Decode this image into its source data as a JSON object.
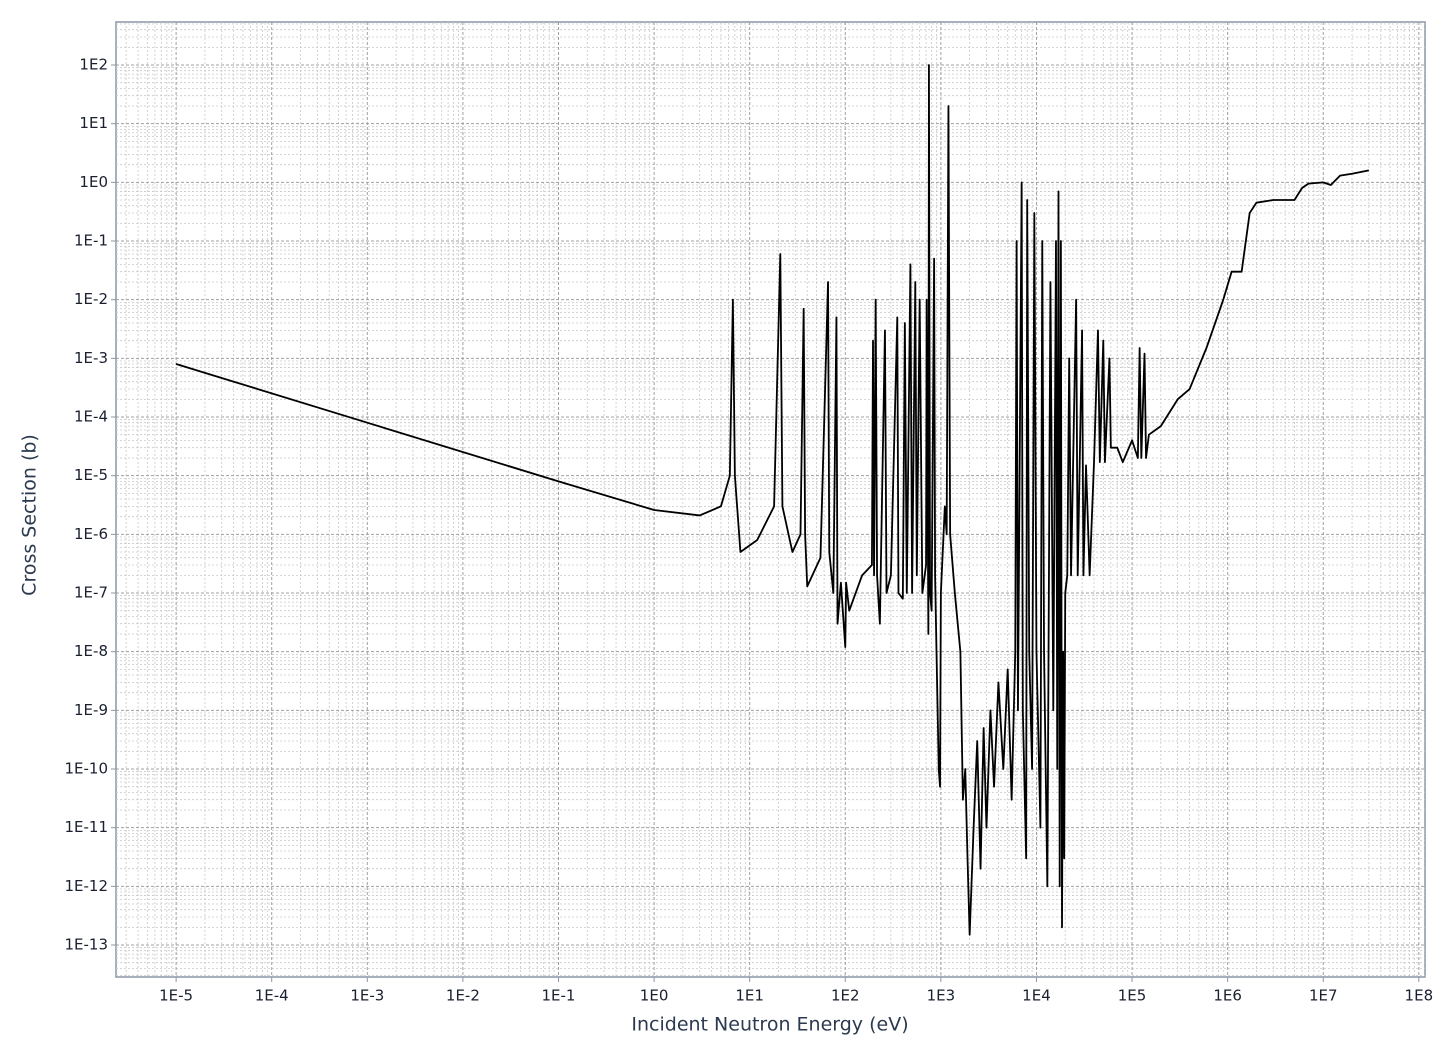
{
  "chart_data": {
    "type": "line",
    "x_label": "Incident Neutron Energy (eV)",
    "y_label": "Cross Section (b)",
    "x_log": true,
    "y_log": true,
    "grid": true,
    "xlim": [
      2.35e-06,
      116000000.0
    ],
    "ylim": [
      2.85e-14,
      541
    ],
    "xticks": [
      {
        "value": 1e-05,
        "label": "1E-5"
      },
      {
        "value": 0.0001,
        "label": "1E-4"
      },
      {
        "value": 0.001,
        "label": "1E-3"
      },
      {
        "value": 0.01,
        "label": "1E-2"
      },
      {
        "value": 0.1,
        "label": "1E-1"
      },
      {
        "value": 1,
        "label": "1E0"
      },
      {
        "value": 10,
        "label": "1E1"
      },
      {
        "value": 100,
        "label": "1E2"
      },
      {
        "value": 1000,
        "label": "1E3"
      },
      {
        "value": 10000,
        "label": "1E4"
      },
      {
        "value": 100000,
        "label": "1E5"
      },
      {
        "value": 1000000,
        "label": "1E6"
      },
      {
        "value": 10000000,
        "label": "1E7"
      },
      {
        "value": 100000000,
        "label": "1E8"
      }
    ],
    "yticks": [
      {
        "value": 1e-13,
        "label": "1E-13"
      },
      {
        "value": 1e-12,
        "label": "1E-12"
      },
      {
        "value": 1e-11,
        "label": "1E-11"
      },
      {
        "value": 1e-10,
        "label": "1E-10"
      },
      {
        "value": 1e-09,
        "label": "1E-9"
      },
      {
        "value": 1e-08,
        "label": "1E-8"
      },
      {
        "value": 1e-07,
        "label": "1E-7"
      },
      {
        "value": 1e-06,
        "label": "1E-6"
      },
      {
        "value": 1e-05,
        "label": "1E-5"
      },
      {
        "value": 0.0001,
        "label": "1E-4"
      },
      {
        "value": 0.001,
        "label": "1E-3"
      },
      {
        "value": 0.01,
        "label": "1E-2"
      },
      {
        "value": 0.1,
        "label": "1E-1"
      },
      {
        "value": 1,
        "label": "1E0"
      },
      {
        "value": 10,
        "label": "1E1"
      },
      {
        "value": 100,
        "label": "1E2"
      }
    ],
    "x": [
      1e-05,
      0.001,
      0.1,
      1,
      3,
      5,
      6.2,
      6.67,
      7,
      8,
      12,
      18,
      20.9,
      22,
      28,
      34,
      36.7,
      38,
      40,
      55,
      66,
      68,
      75,
      80.8,
      83,
      90,
      100,
      102,
      110,
      150,
      190,
      195,
      200,
      208,
      215,
      230,
      260,
      270,
      300,
      350,
      360,
      400,
      420,
      440,
      480,
      500,
      540,
      560,
      600,
      640,
      700,
      710,
      740,
      750,
      770,
      800,
      850,
      870,
      900,
      950,
      980,
      1000,
      1100,
      1150,
      1200,
      1250,
      1400,
      1600,
      1700,
      1800,
      1900,
      2000,
      2200,
      2400,
      2600,
      2800,
      3000,
      3300,
      3600,
      4000,
      4500,
      5000,
      5500,
      6000,
      6200,
      6400,
      7000,
      7200,
      7800,
      8000,
      8400,
      9000,
      9500,
      10000,
      11000,
      11500,
      12000,
      13000,
      14000,
      15000,
      16000,
      16500,
      17000,
      17500,
      18000,
      18500,
      19000,
      19500,
      20000,
      21000,
      22000,
      23000,
      26000,
      27000,
      30000,
      31000,
      33000,
      36000,
      40000,
      44000,
      46000,
      50000,
      52000,
      58000,
      60000,
      70000,
      80000,
      100000,
      115000,
      120000,
      125000,
      135000,
      140000,
      150000,
      200000,
      300000,
      400000,
      600000,
      900000,
      1100000,
      1400000,
      1700000,
      2000000,
      3000000,
      5000000,
      6000000,
      7000000,
      10000000,
      12000000,
      15000000,
      20000000,
      30000000
    ],
    "series": [
      {
        "color": "#000000",
        "values": [
          0.0008,
          8e-05,
          8e-06,
          2.6e-06,
          2.1e-06,
          3e-06,
          1e-05,
          0.01,
          1e-05,
          5e-07,
          8e-07,
          3e-06,
          0.06,
          3e-06,
          5e-07,
          1e-06,
          0.007,
          1e-06,
          1.3e-07,
          4e-07,
          0.02,
          5e-07,
          1e-07,
          0.005,
          3e-08,
          1.5e-07,
          1.2e-08,
          1.5e-07,
          5e-08,
          2e-07,
          3e-07,
          0.002,
          2e-07,
          0.01,
          2e-07,
          3e-08,
          0.003,
          1e-07,
          2e-07,
          0.005,
          1e-07,
          8e-08,
          0.004,
          1e-07,
          0.04,
          1e-07,
          0.02,
          2e-07,
          0.01,
          1e-07,
          3e-07,
          0.01,
          2e-08,
          100,
          1e-07,
          5e-08,
          0.05,
          2e-07,
          1e-08,
          1e-10,
          5e-11,
          1e-07,
          3e-06,
          1e-06,
          20,
          1e-06,
          1e-07,
          1e-08,
          3e-11,
          1e-10,
          3e-12,
          1.5e-13,
          1e-11,
          3e-10,
          2e-12,
          5e-10,
          1e-11,
          1e-09,
          5e-11,
          3e-09,
          1e-10,
          5e-09,
          3e-11,
          1e-08,
          0.1,
          1e-09,
          1,
          1e-09,
          3e-12,
          0.5,
          1e-08,
          1e-10,
          0.3,
          1e-08,
          1e-11,
          0.1,
          1e-08,
          1e-12,
          0.02,
          1e-09,
          0.1,
          1e-10,
          0.7,
          1e-12,
          0.1,
          2e-13,
          1e-08,
          3e-12,
          1e-07,
          2e-07,
          0.001,
          2e-07,
          0.01,
          2e-07,
          0.003,
          2e-07,
          1.5e-05,
          2e-07,
          1.7e-05,
          0.003,
          1.7e-05,
          0.002,
          1.7e-05,
          0.001,
          3e-05,
          3e-05,
          1.7e-05,
          4e-05,
          2e-05,
          0.0015,
          2e-05,
          0.0012,
          2e-05,
          5e-05,
          7e-05,
          0.0002,
          0.0003,
          0.0015,
          0.01,
          0.03,
          0.03,
          0.3,
          0.45,
          0.5,
          0.5,
          0.8,
          0.95,
          1,
          0.9,
          1.3,
          1.4,
          1.6
        ]
      }
    ]
  }
}
